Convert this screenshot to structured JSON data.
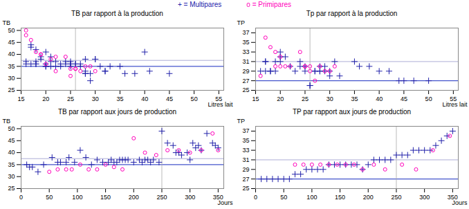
{
  "chart_data": [
    {
      "type": "scatter",
      "title": "TB par rapport à la production",
      "xlabel": "Litres lait",
      "ylabel": "TB",
      "xlim": [
        15,
        56
      ],
      "ylim": [
        25,
        51
      ],
      "xticks": [
        15,
        20,
        25,
        30,
        35,
        40,
        45,
        50,
        55
      ],
      "yticks": [
        25,
        30,
        35,
        40,
        45,
        50
      ],
      "grid": false,
      "hlines": [
        35.0,
        37.5
      ],
      "vlines": [
        26.0
      ],
      "series": [
        {
          "name": "+ = Multipares",
          "color": "#2222aa",
          "marker": "plus",
          "x": [
            16,
            16,
            17,
            17,
            17,
            18,
            18,
            18,
            18,
            19,
            19,
            20,
            20,
            20,
            20,
            21,
            21,
            21,
            22,
            22,
            23,
            23,
            24,
            24,
            25,
            25,
            25,
            25,
            26,
            26,
            27,
            27,
            28,
            28,
            28,
            28,
            29,
            29,
            30,
            30,
            31,
            32,
            32,
            33,
            35,
            36,
            38,
            40,
            41,
            45
          ],
          "values": [
            36,
            37,
            44,
            43,
            36,
            42,
            36,
            36,
            37,
            39,
            38,
            35,
            35,
            36,
            41,
            39,
            37,
            35,
            35,
            37,
            36,
            35,
            36,
            37,
            36,
            36,
            37,
            35,
            36,
            36,
            36,
            35,
            32,
            32,
            33,
            38,
            29,
            32,
            38,
            38,
            35,
            33,
            33,
            35,
            35,
            32,
            32,
            41,
            33,
            32
          ]
        },
        {
          "name": "o = Primipares",
          "color": "#ff00bb",
          "marker": "circle",
          "x": [
            16,
            16,
            17,
            18,
            19,
            19,
            20,
            21,
            22,
            22,
            24,
            25,
            25,
            26,
            26,
            27,
            28,
            29,
            30
          ],
          "values": [
            50,
            48,
            46,
            41,
            40,
            40,
            36,
            38,
            39,
            33,
            39,
            34,
            31,
            34,
            34,
            33,
            35,
            35,
            33
          ]
        }
      ]
    },
    {
      "type": "scatter",
      "title": "Tp par rapport à la production",
      "xlabel": "Litres lait",
      "ylabel": "TP",
      "xlim": [
        15,
        56
      ],
      "ylim": [
        25,
        38
      ],
      "xticks": [
        15,
        20,
        25,
        30,
        35,
        40,
        45,
        50,
        55
      ],
      "yticks": [
        25,
        27,
        29,
        31,
        33,
        35,
        37
      ],
      "grid": false,
      "hlines": [
        27.0,
        31.0
      ],
      "vlines": [
        26.0
      ],
      "series": [
        {
          "name": "+ = Multipares",
          "color": "#2222aa",
          "marker": "plus",
          "x": [
            16,
            17,
            17,
            17,
            18,
            18,
            19,
            19,
            20,
            20,
            20,
            21,
            22,
            23,
            24,
            24,
            25,
            25,
            26,
            26,
            27,
            27,
            28,
            28,
            28,
            29,
            29,
            30,
            30,
            31,
            32,
            35,
            36,
            38,
            40,
            42,
            44,
            45,
            47,
            50
          ],
          "values": [
            29,
            31,
            31,
            29,
            29,
            29,
            31,
            29,
            32,
            33,
            31,
            32,
            30,
            29,
            30,
            31,
            29,
            30,
            26,
            26,
            29,
            29,
            30,
            29,
            29,
            29,
            30,
            29,
            28,
            31,
            28,
            31,
            30,
            30,
            29,
            29,
            27,
            27,
            27,
            27
          ]
        },
        {
          "name": "o = Primipares",
          "color": "#ff00bb",
          "marker": "circle",
          "x": [
            16,
            17,
            18,
            19,
            19,
            20,
            20,
            21,
            22,
            24,
            25,
            25,
            26,
            26,
            27,
            28,
            29,
            30,
            31
          ],
          "values": [
            28,
            36,
            34,
            30,
            33,
            32,
            30,
            30,
            30,
            33,
            30,
            30,
            30,
            29,
            27,
            30,
            29,
            29,
            30
          ]
        }
      ]
    },
    {
      "type": "scatter",
      "title": "TB par rapport aux jours de production",
      "xlabel": "Jours",
      "ylabel": "TB",
      "xlim": [
        0,
        360
      ],
      "ylim": [
        25,
        51
      ],
      "xticks": [
        0,
        50,
        100,
        150,
        200,
        250,
        300,
        350
      ],
      "yticks": [
        25,
        30,
        35,
        40,
        45,
        50
      ],
      "grid": false,
      "hlines": [
        35.0,
        37.5
      ],
      "vlines": [
        250.0
      ],
      "series": [
        {
          "name": "+ = Multipares",
          "color": "#2222aa",
          "marker": "plus",
          "x": [
            10,
            15,
            20,
            30,
            40,
            55,
            65,
            70,
            80,
            85,
            95,
            105,
            115,
            125,
            135,
            145,
            155,
            160,
            165,
            170,
            175,
            180,
            185,
            190,
            200,
            210,
            215,
            220,
            225,
            230,
            235,
            245,
            250,
            260,
            270,
            275,
            280,
            285,
            295,
            300,
            305,
            310,
            315,
            320,
            330,
            340,
            345,
            350
          ],
          "values": [
            35,
            34,
            34,
            32,
            35,
            38,
            36,
            36,
            36,
            38,
            36,
            41,
            38,
            35,
            37,
            36,
            36,
            37,
            36,
            36,
            37,
            37,
            37,
            37,
            36,
            37,
            36,
            37,
            37,
            36,
            37,
            36,
            49,
            44,
            43,
            40,
            40,
            39,
            40,
            37,
            44,
            42,
            43,
            41,
            48,
            44,
            43,
            42
          ]
        },
        {
          "name": "o = Primipares",
          "color": "#ff00bb",
          "marker": "circle",
          "x": [
            50,
            65,
            80,
            90,
            105,
            120,
            135,
            150,
            165,
            180,
            200,
            220,
            240,
            260,
            280,
            300,
            320,
            340,
            350
          ],
          "values": [
            32,
            33,
            33,
            33,
            35,
            33,
            33,
            35,
            34,
            33,
            46,
            40,
            39,
            41,
            41,
            40,
            41,
            48,
            41
          ]
        }
      ]
    },
    {
      "type": "scatter",
      "title": "TP par rapport aux jours de production",
      "xlabel": "Jours",
      "ylabel": "TP",
      "xlim": [
        0,
        360
      ],
      "ylim": [
        25,
        38
      ],
      "xticks": [
        0,
        50,
        100,
        150,
        200,
        250,
        300,
        350
      ],
      "yticks": [
        25,
        27,
        29,
        31,
        33,
        35,
        37
      ],
      "grid": false,
      "hlines": [
        27.0,
        31.0
      ],
      "vlines": [
        250.0
      ],
      "series": [
        {
          "name": "+ = Multipares",
          "color": "#2222aa",
          "marker": "plus",
          "x": [
            10,
            20,
            30,
            40,
            50,
            60,
            70,
            80,
            90,
            100,
            110,
            120,
            130,
            140,
            150,
            160,
            170,
            180,
            190,
            200,
            210,
            220,
            230,
            240,
            250,
            260,
            270,
            280,
            290,
            300,
            310,
            320,
            330,
            340,
            350
          ],
          "values": [
            27,
            27,
            27,
            27,
            27,
            27,
            28,
            28,
            29,
            29,
            29,
            29,
            30,
            30,
            30,
            30,
            30,
            30,
            29,
            30,
            31,
            31,
            31,
            31,
            32,
            32,
            32,
            33,
            33,
            33,
            33,
            34,
            35,
            36,
            37
          ]
        },
        {
          "name": "o = Primipares",
          "color": "#ff00bb",
          "marker": "circle",
          "x": [
            70,
            85,
            100,
            115,
            130,
            145,
            160,
            175,
            190,
            210,
            230,
            260,
            285,
            315,
            345
          ],
          "values": [
            30,
            30,
            30,
            30,
            30,
            30,
            30,
            30,
            29,
            30,
            29,
            30,
            29,
            33,
            36
          ]
        }
      ]
    }
  ]
}
